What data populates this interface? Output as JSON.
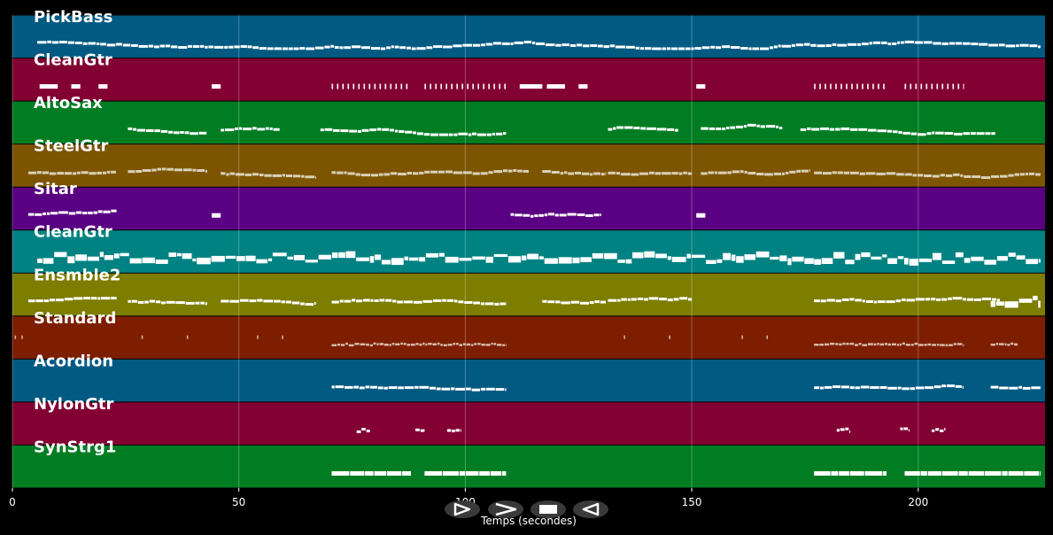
{
  "chart_data": {
    "type": "piano-roll",
    "xlabel": "Temps (secondes)",
    "xlim": [
      0,
      228
    ],
    "xticks": [
      0,
      50,
      100,
      150,
      200
    ],
    "xtick_labels": [
      "0",
      "50",
      "100",
      "150",
      "200"
    ],
    "grid": "vertical",
    "tracks": [
      {
        "name": "PickBass",
        "color": "#005a82",
        "note_color": "#ffffff",
        "segments": [
          [
            5.5,
            227,
            "dense"
          ]
        ]
      },
      {
        "name": "CleanGtr",
        "color": "#820032",
        "note_color": "#ffffff",
        "segments": [
          [
            6,
            10,
            "block"
          ],
          [
            13,
            15,
            "block"
          ],
          [
            19,
            21,
            "block"
          ],
          [
            44,
            46,
            "block"
          ],
          [
            70.5,
            88,
            "sparse"
          ],
          [
            91,
            109,
            "sparse"
          ],
          [
            112,
            117,
            "block"
          ],
          [
            118,
            122,
            "block"
          ],
          [
            125,
            127,
            "block"
          ],
          [
            151,
            153,
            "block"
          ],
          [
            177,
            193,
            "sparse"
          ],
          [
            197,
            210,
            "sparse"
          ]
        ]
      },
      {
        "name": "AltoSax",
        "color": "#007d23",
        "note_color": "#ffffff",
        "segments": [
          [
            25.5,
            43,
            "dense"
          ],
          [
            46,
            59,
            "dense"
          ],
          [
            68,
            109,
            "dense"
          ],
          [
            131.5,
            147,
            "dense"
          ],
          [
            152,
            170,
            "dense"
          ],
          [
            174,
            217,
            "dense"
          ]
        ]
      },
      {
        "name": "SteelGtr",
        "color": "#7d5500",
        "note_color": "#d8d0b8",
        "segments": [
          [
            3.5,
            23,
            "dense"
          ],
          [
            25.5,
            43,
            "dense"
          ],
          [
            46,
            67,
            "dense"
          ],
          [
            70.5,
            114,
            "dense"
          ],
          [
            117,
            131,
            "dense"
          ],
          [
            131.5,
            150,
            "dense"
          ],
          [
            152,
            176,
            "dense"
          ],
          [
            177,
            227,
            "dense"
          ]
        ]
      },
      {
        "name": "Sitar",
        "color": "#5a0082",
        "note_color": "#ffffff",
        "segments": [
          [
            3.5,
            23,
            "dense"
          ],
          [
            44,
            46,
            "block"
          ],
          [
            110,
            130,
            "dense"
          ],
          [
            151,
            153,
            "block"
          ]
        ]
      },
      {
        "name": "CleanGtr",
        "color": "#008282",
        "note_color": "#ffffff",
        "segments": [
          [
            5.5,
            177,
            "thick"
          ],
          [
            177,
            227,
            "thick"
          ]
        ]
      },
      {
        "name": "Ensmble2",
        "color": "#7d7d00",
        "note_color": "#ffffff",
        "segments": [
          [
            3.5,
            23,
            "dense"
          ],
          [
            25.5,
            43,
            "dense"
          ],
          [
            46,
            67,
            "dense"
          ],
          [
            70.5,
            109,
            "dense"
          ],
          [
            117,
            131,
            "dense"
          ],
          [
            131.5,
            150,
            "dense"
          ],
          [
            177,
            218,
            "dense"
          ],
          [
            216,
            227,
            "thick"
          ]
        ]
      },
      {
        "name": "Standard",
        "color": "#7d1e00",
        "note_color": "#d8b8a8",
        "segments": [
          [
            70.5,
            109,
            "drum"
          ],
          [
            177,
            210,
            "drum"
          ],
          [
            216,
            222,
            "drum"
          ]
        ],
        "dots": [
          0.5,
          2,
          28.5,
          38.5,
          54,
          59.5,
          135,
          145,
          161,
          166.5
        ]
      },
      {
        "name": "Acordion",
        "color": "#005a82",
        "note_color": "#ffffff",
        "segments": [
          [
            70.5,
            109,
            "dense"
          ],
          [
            177,
            210,
            "dense"
          ],
          [
            216,
            227,
            "dense"
          ]
        ]
      },
      {
        "name": "NylonGtr",
        "color": "#820032",
        "note_color": "#ffffff",
        "segments": [
          [
            76,
            79,
            "short"
          ],
          [
            89,
            91,
            "short"
          ],
          [
            96,
            99,
            "short"
          ],
          [
            182,
            185,
            "short"
          ],
          [
            196,
            198,
            "short"
          ],
          [
            203,
            206,
            "short"
          ]
        ]
      },
      {
        "name": "SynStrg1",
        "color": "#007d23",
        "note_color": "#ffffff",
        "segments": [
          [
            70.5,
            88,
            "block-line"
          ],
          [
            91,
            109,
            "block-line"
          ],
          [
            177,
            193,
            "block-line"
          ],
          [
            197,
            227,
            "block-line"
          ]
        ]
      }
    ]
  },
  "controls": [
    {
      "name": "play-icon",
      "glyph": "play"
    },
    {
      "name": "fast-forward-icon",
      "glyph": "forward"
    },
    {
      "name": "stop-icon",
      "glyph": "stop"
    },
    {
      "name": "rewind-icon",
      "glyph": "back"
    }
  ]
}
